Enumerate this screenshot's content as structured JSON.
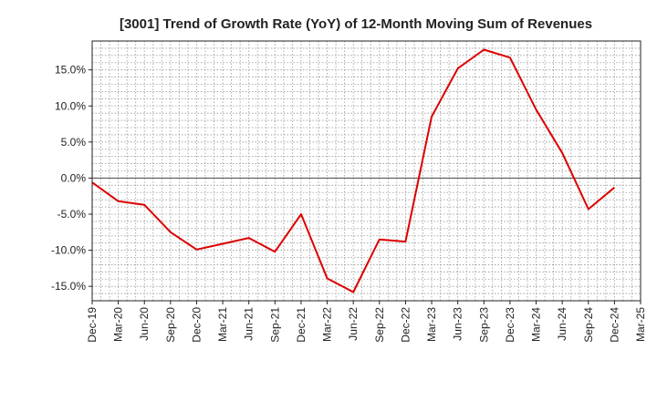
{
  "chart_data": {
    "type": "line",
    "title": "[3001]  Trend of Growth Rate (YoY) of 12-Month Moving Sum of Revenues",
    "xlabel": "",
    "ylabel": "",
    "categories": [
      "Dec-19",
      "Mar-20",
      "Jun-20",
      "Sep-20",
      "Dec-20",
      "Mar-21",
      "Jun-21",
      "Sep-21",
      "Dec-21",
      "Mar-22",
      "Jun-22",
      "Sep-22",
      "Dec-22",
      "Mar-23",
      "Jun-23",
      "Sep-23",
      "Dec-23",
      "Mar-24",
      "Jun-24",
      "Sep-24",
      "Dec-24",
      "Mar-25"
    ],
    "series": [
      {
        "color": "#dd0000",
        "values": [
          -0.6,
          -3.2,
          -3.7,
          -7.5,
          -9.9,
          -9.1,
          -8.3,
          -10.2,
          -5.0,
          -13.9,
          -15.8,
          -8.5,
          -8.8,
          8.5,
          15.2,
          17.8,
          16.7,
          9.5,
          3.5,
          -4.3,
          -1.3,
          null
        ]
      }
    ],
    "yticks": [
      {
        "value": 15,
        "label": "15.0%"
      },
      {
        "value": 10,
        "label": "10.0%"
      },
      {
        "value": 5,
        "label": "5.0%"
      },
      {
        "value": 0,
        "label": "0.0%"
      },
      {
        "value": -5,
        "label": "-5.0%"
      },
      {
        "value": -10,
        "label": "-10.0%"
      },
      {
        "value": -15,
        "label": "-15.0%"
      }
    ],
    "ylim": [
      -17,
      19
    ],
    "grid": true,
    "legend": "none"
  }
}
